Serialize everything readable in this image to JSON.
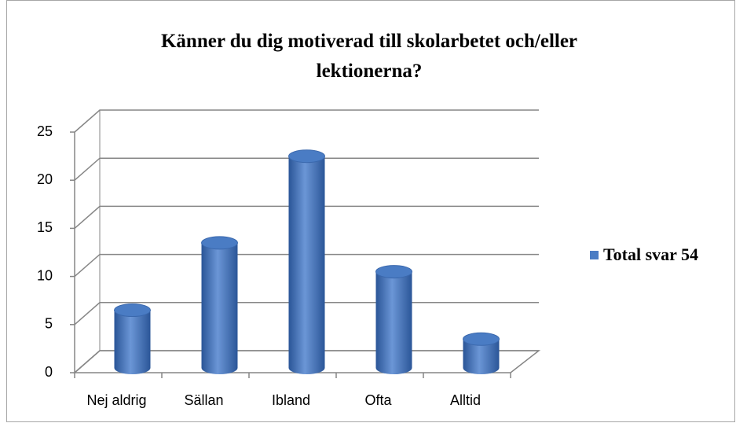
{
  "chart_data": {
    "type": "bar",
    "title": "Känner du dig motiverad till skolarbetet och/eller lektionerna?",
    "categories": [
      "Nej aldrig",
      "Sällan",
      "Ibland",
      "Ofta",
      "Alltid"
    ],
    "series": [
      {
        "name": "Total svar 54",
        "color": "#4a7cc4",
        "values": [
          6,
          13,
          22,
          10,
          3
        ]
      }
    ],
    "ylim": [
      0,
      25
    ],
    "yticks": [
      0,
      5,
      10,
      15,
      20,
      25
    ],
    "grid": true,
    "legend": "right"
  }
}
